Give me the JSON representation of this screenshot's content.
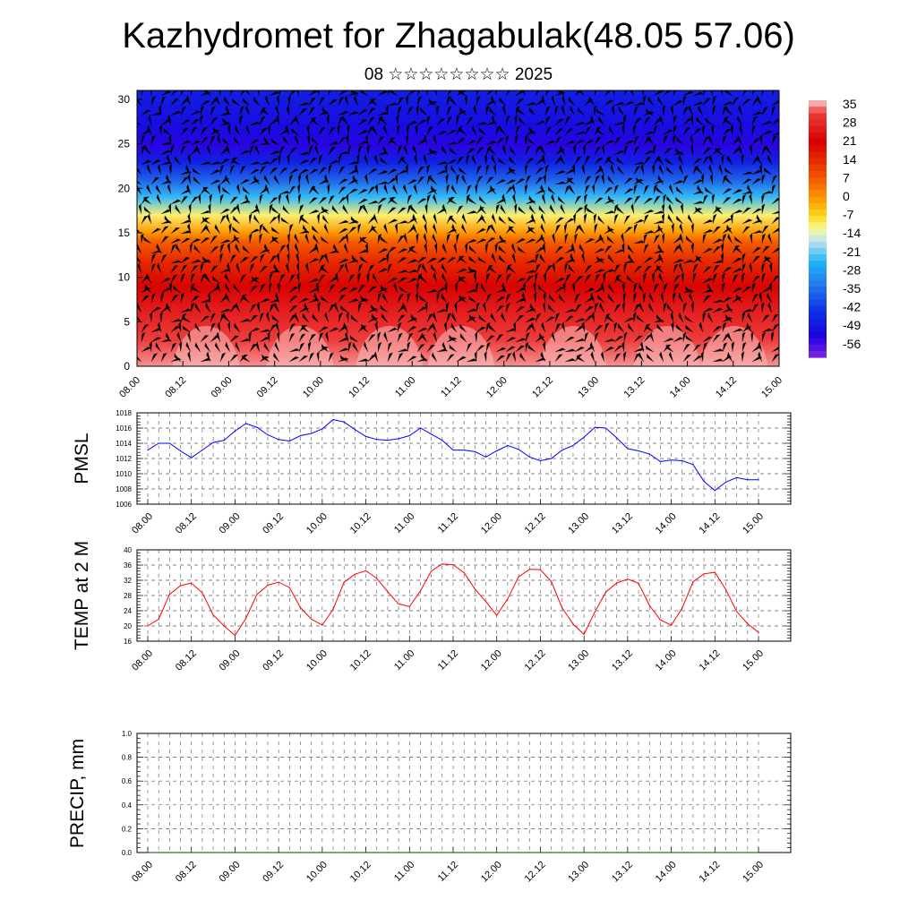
{
  "header": {
    "title": "Kazhydromet for Zhagabulak(48.05 57.06)",
    "subtitle": "08 ☆☆☆☆☆☆☆☆ 2025"
  },
  "chart_data": [
    {
      "type": "heatmap",
      "title": "",
      "xlabel": "",
      "ylabel": "",
      "x_tick_labels": [
        "08.00",
        "08.12",
        "09.00",
        "09.12",
        "10.00",
        "10.12",
        "11.00",
        "11.12",
        "12.00",
        "12.12",
        "13.00",
        "13.12",
        "14.00",
        "14.12",
        "15.00"
      ],
      "y_ticks": [
        0,
        5,
        10,
        15,
        20,
        25,
        30
      ],
      "ylim": [
        0,
        31
      ],
      "colorbar": {
        "labels": [
          "35",
          "28",
          "21",
          "14",
          "7",
          "0",
          "-7",
          "-14",
          "-21",
          "-28",
          "-35",
          "-42",
          "-49",
          "-56"
        ],
        "position": "right"
      },
      "vertical_temperature_profile": {
        "levels": [
          0,
          3,
          6,
          9,
          12,
          14,
          15,
          17,
          19,
          21,
          23,
          25,
          27,
          31
        ],
        "values": [
          33,
          30,
          25,
          20,
          12,
          5,
          -2,
          -12,
          -25,
          -38,
          -48,
          -55,
          -52,
          -48
        ]
      },
      "overlay": "wind barbs"
    },
    {
      "type": "line",
      "ylabel": "PMSL",
      "ylim": [
        1006,
        1018
      ],
      "y_ticks": [
        1006,
        1008,
        1010,
        1012,
        1014,
        1016,
        1018
      ],
      "x_tick_labels": [
        "08.00",
        "08.12",
        "09.00",
        "09.12",
        "10.00",
        "10.12",
        "11.00",
        "11.12",
        "12.00",
        "12.12",
        "13.00",
        "13.12",
        "14.00",
        "14.12",
        "15.00"
      ],
      "grid": true,
      "series": [
        {
          "color": "#0000ff",
          "values": [
            1013.1,
            1014.0,
            1014.0,
            1013.0,
            1012.1,
            1013.1,
            1014.1,
            1014.4,
            1015.6,
            1016.6,
            1016.1,
            1015.1,
            1014.5,
            1014.3,
            1015.0,
            1015.3,
            1015.9,
            1017.1,
            1016.8,
            1015.8,
            1014.9,
            1014.5,
            1014.4,
            1014.6,
            1015.0,
            1016.0,
            1015.2,
            1014.4,
            1013.1,
            1013.1,
            1012.9,
            1012.2,
            1013.0,
            1013.7,
            1013.2,
            1012.2,
            1011.7,
            1012.0,
            1013.1,
            1013.7,
            1014.8,
            1016.1,
            1016.0,
            1014.7,
            1013.3,
            1013.0,
            1012.6,
            1011.6,
            1011.8,
            1011.7,
            1011.2,
            1009.0,
            1007.8,
            1008.9,
            1009.5,
            1009.2,
            1009.2
          ]
        }
      ]
    },
    {
      "type": "line",
      "ylabel": "TEMP at 2 M",
      "ylim": [
        16,
        40
      ],
      "y_ticks": [
        16,
        20,
        24,
        28,
        32,
        36,
        40
      ],
      "x_tick_labels": [
        "08.00",
        "08.12",
        "09.00",
        "09.12",
        "10.00",
        "10.12",
        "11.00",
        "11.12",
        "12.00",
        "12.12",
        "13.00",
        "13.12",
        "14.00",
        "14.12",
        "15.00"
      ],
      "grid": true,
      "series": [
        {
          "color": "#ff0000",
          "values": [
            20.0,
            21.8,
            28.3,
            30.6,
            31.3,
            28.7,
            22.9,
            20.0,
            17.5,
            22.0,
            28.2,
            30.7,
            31.5,
            30.1,
            24.8,
            21.8,
            20.2,
            24.4,
            31.5,
            33.6,
            34.5,
            32.5,
            29.0,
            25.8,
            25.1,
            29.2,
            34.4,
            36.3,
            36.1,
            34.0,
            29.7,
            26.4,
            22.8,
            27.1,
            32.9,
            34.9,
            34.8,
            31.7,
            24.7,
            20.5,
            17.8,
            23.7,
            28.9,
            31.3,
            32.3,
            31.2,
            25.4,
            21.6,
            20.2,
            24.7,
            31.6,
            33.7,
            34.1,
            29.6,
            23.8,
            20.6,
            18.3
          ]
        }
      ]
    },
    {
      "type": "line",
      "ylabel": "PRECIP, mm",
      "ylim": [
        0.0,
        1.0
      ],
      "y_tick_labels": [
        "0.0",
        "0.2",
        "0.4",
        "0.6",
        "0.8",
        "1.0"
      ],
      "x_tick_labels": [
        "08.00",
        "08.12",
        "09.00",
        "09.12",
        "10.00",
        "10.12",
        "11.00",
        "11.12",
        "12.00",
        "12.12",
        "13.00",
        "13.12",
        "14.00",
        "14.12",
        "15.00"
      ],
      "grid": true,
      "series": [
        {
          "color": "#004400",
          "values": [
            0,
            0,
            0,
            0,
            0,
            0,
            0,
            0,
            0,
            0,
            0,
            0,
            0,
            0,
            0,
            0,
            0,
            0,
            0,
            0,
            0,
            0,
            0,
            0,
            0,
            0,
            0,
            0,
            0,
            0,
            0,
            0,
            0,
            0,
            0,
            0,
            0,
            0,
            0,
            0,
            0,
            0,
            0,
            0,
            0,
            0,
            0,
            0,
            0,
            0,
            0,
            0,
            0,
            0,
            0,
            0,
            0
          ]
        }
      ]
    }
  ]
}
